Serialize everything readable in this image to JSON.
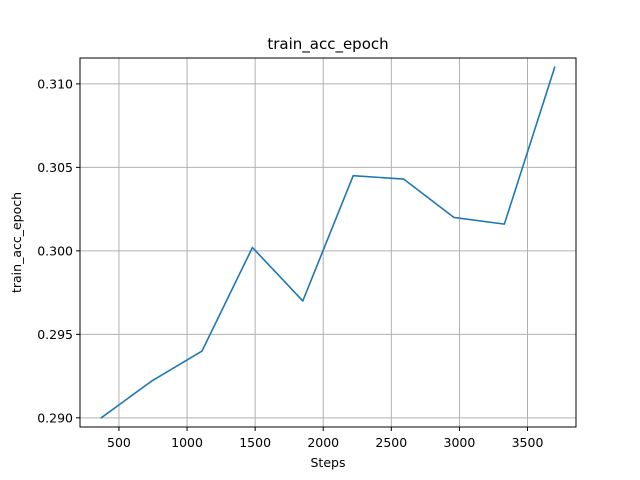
{
  "chart_data": {
    "type": "line",
    "title": "train_acc_epoch",
    "xlabel": "Steps",
    "ylabel": "train_acc_epoch",
    "xlim": [
      214,
      3856
    ],
    "ylim": [
      0.28945,
      0.31155
    ],
    "xticks": [
      500,
      1000,
      1500,
      2000,
      2500,
      3000,
      3500
    ],
    "xtick_labels": [
      "500",
      "1000",
      "1500",
      "2000",
      "2500",
      "3000",
      "3500"
    ],
    "yticks": [
      0.29,
      0.295,
      0.3,
      0.305,
      0.31
    ],
    "ytick_labels": [
      "0.290",
      "0.295",
      "0.300",
      "0.305",
      "0.310"
    ],
    "grid": true,
    "legend": "none",
    "series": [
      {
        "color": "#1f77b4",
        "x": [
          370,
          740,
          1110,
          1480,
          1850,
          2220,
          2590,
          2960,
          3330,
          3700
        ],
        "y": [
          0.29,
          0.2922,
          0.294,
          0.3002,
          0.297,
          0.3045,
          0.3043,
          0.302,
          0.3016,
          0.311
        ]
      }
    ]
  }
}
